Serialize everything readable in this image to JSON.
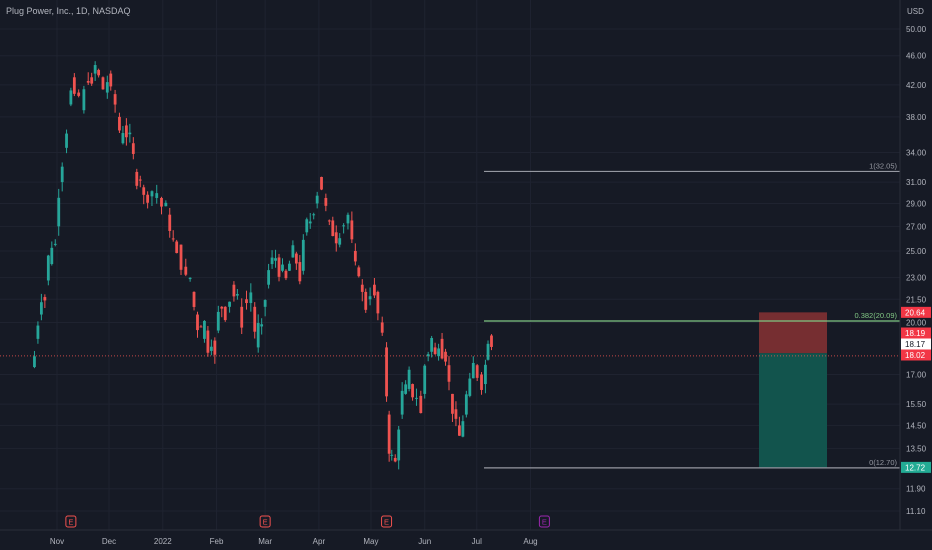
{
  "header": {
    "title": "Plug Power, Inc., 1D, NASDAQ",
    "currency": "USD"
  },
  "colors": {
    "background": "#161a25",
    "grid": "#1f2330",
    "up": "#26a69a",
    "down": "#ef5350",
    "axis_text": "#b2b5be",
    "fib_line": "#9598a1",
    "fib_green": "#81c784",
    "stop_zone": "#7b2f31",
    "target_zone": "#12574f",
    "earnings_red": "#f2514f",
    "earnings_purple": "#9c27b0"
  },
  "chart_data": {
    "type": "candlestick",
    "y_axis": {
      "scale": "log",
      "ticks": [
        "50.00",
        "46.00",
        "42.00",
        "38.00",
        "34.00",
        "31.00",
        "29.00",
        "27.00",
        "25.00",
        "23.00",
        "21.50",
        "20.00",
        "17.00",
        "15.50",
        "14.50",
        "13.50",
        "11.90",
        "11.10"
      ]
    },
    "x_axis": {
      "ticks": [
        "Nov",
        "Dec",
        "2022",
        "Feb",
        "Mar",
        "Apr",
        "May",
        "Jun",
        "Jul",
        "Aug"
      ]
    },
    "price_labels": [
      {
        "value": "20.64",
        "kind": "stop"
      },
      {
        "value": "18.19",
        "kind": "bar-close"
      },
      {
        "value": "18.17",
        "kind": "entry"
      },
      {
        "value": "18.02",
        "kind": "last"
      },
      {
        "value": "12.72",
        "kind": "target"
      }
    ],
    "fib_levels": [
      {
        "label": "1(32.05)",
        "price": 32.05
      },
      {
        "label": "0.382(20.09)",
        "price": 20.09
      },
      {
        "label": "0(12.70)",
        "price": 12.7
      }
    ],
    "position": {
      "entry": 18.17,
      "stop": 20.64,
      "target": 12.72
    },
    "earnings_markers": [
      {
        "label": "E",
        "date": "Nov 09",
        "color": "red"
      },
      {
        "label": "E",
        "date": "Mar 01",
        "color": "red"
      },
      {
        "label": "E",
        "date": "May 10",
        "color": "red"
      },
      {
        "label": "E",
        "date": "Aug 09",
        "color": "purple"
      }
    ],
    "path": [
      [
        "Oct 18",
        17.4,
        18.0
      ],
      [
        "Oct 20",
        19.0,
        20.0
      ],
      [
        "Oct 22",
        20.5,
        21.5
      ],
      [
        "Oct 26",
        22.8,
        24.5
      ],
      [
        "Oct 28",
        24.0,
        25.5
      ],
      [
        "Nov 01",
        27.0,
        30.0
      ],
      [
        "Nov 03",
        31.0,
        33.0
      ],
      [
        "Nov 05",
        34.5,
        36.5
      ],
      [
        "Nov 08",
        39.5,
        41.0
      ],
      [
        "Nov 10",
        43.0,
        40.0
      ],
      [
        "Nov 12",
        41.0,
        40.5
      ],
      [
        "Nov 15",
        38.8,
        41.0
      ],
      [
        "Nov 18",
        42.5,
        41.5
      ],
      [
        "Nov 22",
        43.5,
        44.5
      ],
      [
        "Nov 24",
        44.0,
        43.0
      ],
      [
        "Nov 26",
        43.0,
        41.5
      ],
      [
        "Nov 29",
        41.0,
        42.5
      ],
      [
        "Dec 01",
        43.5,
        41.0
      ],
      [
        "Dec 03",
        40.8,
        39.5
      ],
      [
        "Dec 06",
        38.0,
        36.5
      ],
      [
        "Dec 08",
        35.0,
        36.5
      ],
      [
        "Dec 10",
        37.0,
        35.5
      ],
      [
        "Dec 14",
        35.0,
        33.5
      ],
      [
        "Dec 16",
        32.0,
        31.5
      ],
      [
        "Dec 20",
        30.5,
        29.5
      ],
      [
        "Dec 22",
        29.8,
        30.2
      ],
      [
        "Dec 27",
        29.5,
        30.0
      ],
      [
        "Dec 30",
        29.5,
        28.6
      ],
      [
        "Jan 04",
        28.0,
        27.0
      ],
      [
        "Jan 06",
        26.0,
        24.5
      ],
      [
        "Jan 10",
        25.5,
        24.0
      ],
      [
        "Jan 13",
        23.8,
        23.0
      ],
      [
        "Jan 18",
        22.0,
        21.0
      ],
      [
        "Jan 20",
        20.5,
        20.0
      ],
      [
        "Jan 24",
        19.0,
        20.0
      ],
      [
        "Jan 26",
        19.5,
        18.5
      ],
      [
        "Jan 28",
        18.3,
        17.9
      ],
      [
        "Feb 01",
        19.5,
        20.5
      ],
      [
        "Feb 03",
        21.0,
        20.5
      ],
      [
        "Feb 07",
        21.0,
        21.5
      ],
      [
        "Feb 10",
        22.5,
        21.5
      ],
      [
        "Feb 14",
        21.0,
        20.0
      ],
      [
        "Feb 17",
        21.5,
        22.0
      ],
      [
        "Feb 22",
        21.0,
        19.5
      ],
      [
        "Feb 24",
        18.5,
        19.5
      ],
      [
        "Feb 28",
        21.0,
        21.5
      ],
      [
        "Mar 02",
        22.5,
        23.5
      ],
      [
        "Mar 04",
        24.0,
        24.5
      ],
      [
        "Mar 08",
        24.5,
        23.5
      ],
      [
        "Mar 10",
        23.5,
        22.8
      ],
      [
        "Mar 14",
        23.5,
        24.0
      ],
      [
        "Mar 16",
        24.5,
        25.0
      ],
      [
        "Mar 18",
        24.8,
        23.0
      ],
      [
        "Mar 22",
        23.5,
        25.5
      ],
      [
        "Mar 24",
        26.5,
        27.5
      ],
      [
        "Mar 28",
        28.0,
        28.5
      ],
      [
        "Mar 30",
        29.0,
        30.0
      ],
      [
        "Apr 01",
        31.5,
        30.5
      ],
      [
        "Apr 04",
        29.5,
        28.5
      ],
      [
        "Apr 06",
        27.5,
        27.0
      ],
      [
        "Apr 08",
        27.5,
        26.0
      ],
      [
        "Apr 12",
        25.5,
        26.5
      ],
      [
        "Apr 14",
        27.0,
        28.0
      ],
      [
        "Apr 19",
        27.5,
        25.5
      ],
      [
        "Apr 21",
        25.0,
        23.5
      ],
      [
        "Apr 25",
        22.5,
        21.8
      ],
      [
        "Apr 27",
        22.0,
        21.0
      ],
      [
        "Apr 29",
        21.5,
        22.0
      ],
      [
        "May 02",
        22.5,
        21.5
      ],
      [
        "May 04",
        22.0,
        20.5
      ],
      [
        "May 06",
        20.0,
        19.0
      ],
      [
        "May 09",
        18.5,
        16.0
      ],
      [
        "May 11",
        15.0,
        13.5
      ],
      [
        "May 12",
        13.2,
        12.9
      ],
      [
        "May 16",
        13.0,
        14.5
      ],
      [
        "May 18",
        15.0,
        16.0
      ],
      [
        "May 20",
        16.0,
        17.0
      ],
      [
        "May 24",
        16.5,
        16.0
      ],
      [
        "May 26",
        15.8,
        15.0
      ],
      [
        "May 31",
        16.0,
        17.5
      ],
      [
        "Jun 02",
        18.0,
        19.0
      ],
      [
        "Jun 06",
        18.5,
        18.0
      ],
      [
        "Jun 08",
        18.0,
        18.8
      ],
      [
        "Jun 10",
        19.0,
        18.0
      ],
      [
        "Jun 14",
        17.5,
        16.5
      ],
      [
        "Jun 16",
        16.0,
        14.5
      ],
      [
        "Jun 20",
        14.5,
        14.0
      ],
      [
        "Jun 22",
        14.0,
        14.8
      ],
      [
        "Jun 24",
        15.0,
        16.5
      ],
      [
        "Jun 28",
        16.8,
        17.5
      ],
      [
        "Jun 30",
        17.5,
        16.5
      ],
      [
        "Jul 05",
        16.5,
        17.5
      ],
      [
        "Jul 07",
        17.8,
        19.0
      ],
      [
        "Jul 08",
        19.2,
        18.8
      ],
      [
        "Jul 11",
        18.5,
        18.02
      ]
    ]
  }
}
